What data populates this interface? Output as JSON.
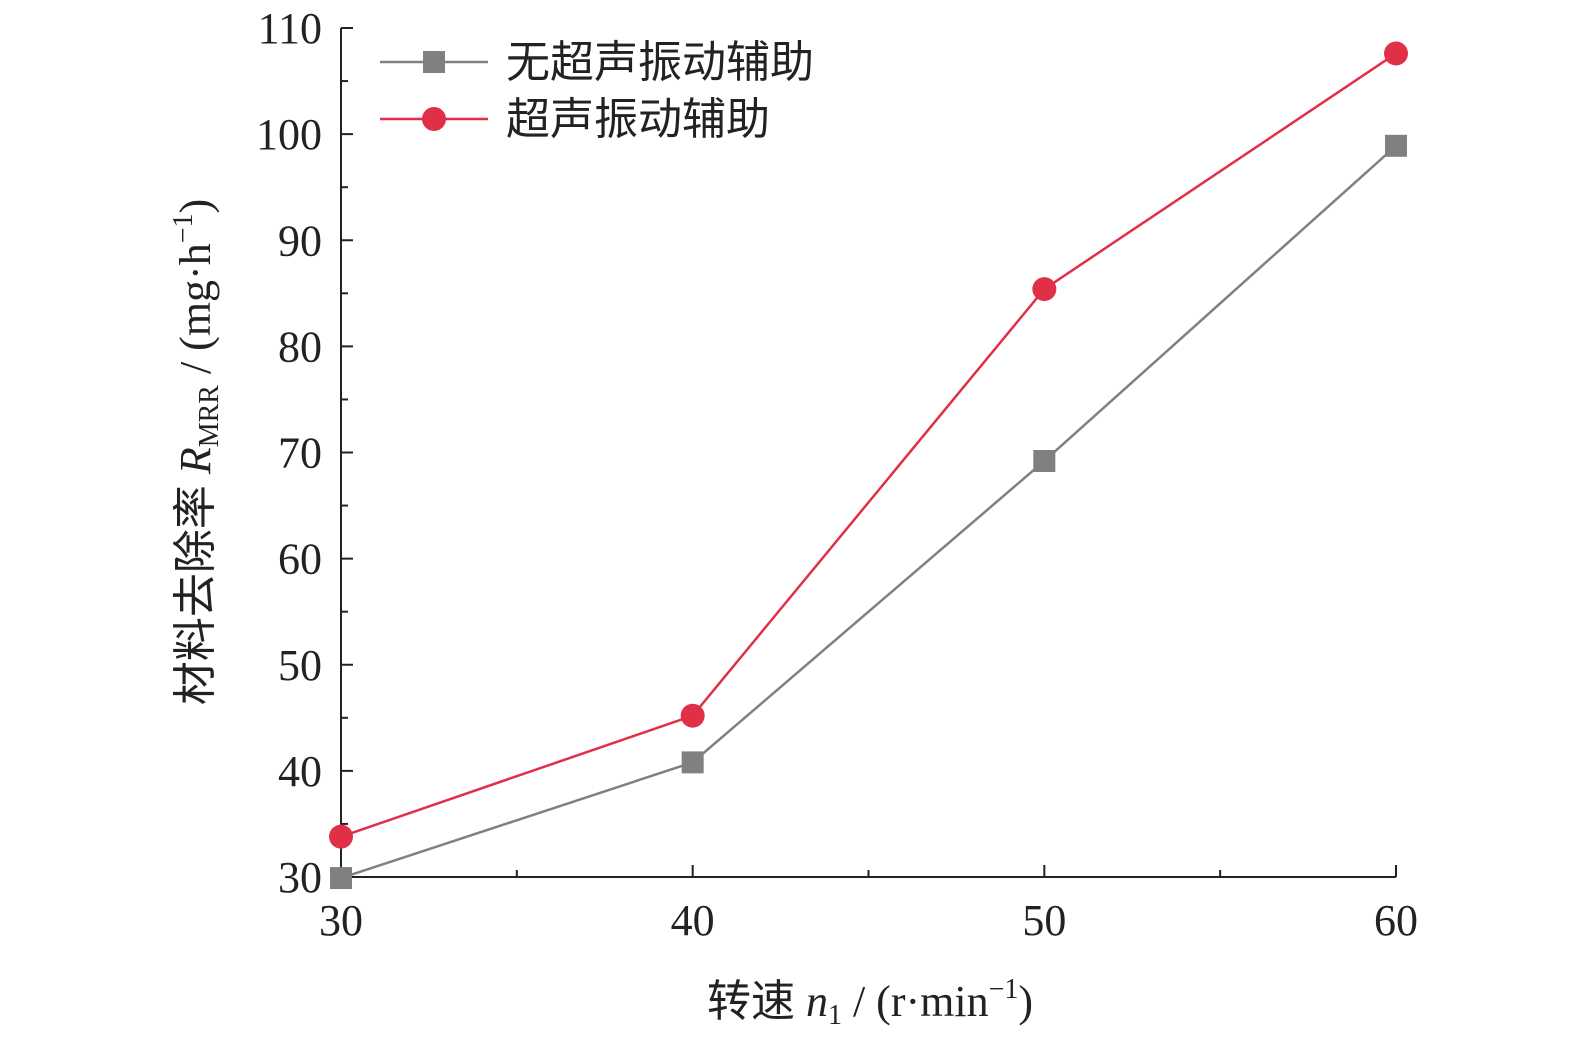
{
  "chart_data": {
    "type": "line",
    "title": "",
    "x": [
      30,
      40,
      50,
      60
    ],
    "xlim": [
      30,
      60
    ],
    "ylim": [
      30,
      110
    ],
    "x_ticks": [
      "30",
      "40",
      "50",
      "60"
    ],
    "y_ticks": [
      "30",
      "40",
      "50",
      "60",
      "70",
      "80",
      "90",
      "100",
      "110"
    ],
    "xlabel": {
      "prefix": "转速 ",
      "var": "n",
      "sub": "1",
      "unit_open": " / (r·min",
      "sup": "−1",
      "unit_close": ")"
    },
    "ylabel": {
      "prefix": "材料去除率 ",
      "var": "R",
      "sub": "MRR",
      "unit_open": " / (mg·h",
      "sup": "−1",
      "unit_close": ")"
    },
    "grid": false,
    "legend_position": "top-left",
    "series": [
      {
        "name": "无超声振动辅助",
        "marker": "square",
        "color": "#808080",
        "values": [
          29.9,
          40.8,
          69.2,
          98.9
        ]
      },
      {
        "name": "超声振动辅助",
        "marker": "circle",
        "color": "#e03048",
        "values": [
          33.8,
          45.2,
          85.4,
          107.6
        ]
      }
    ]
  }
}
